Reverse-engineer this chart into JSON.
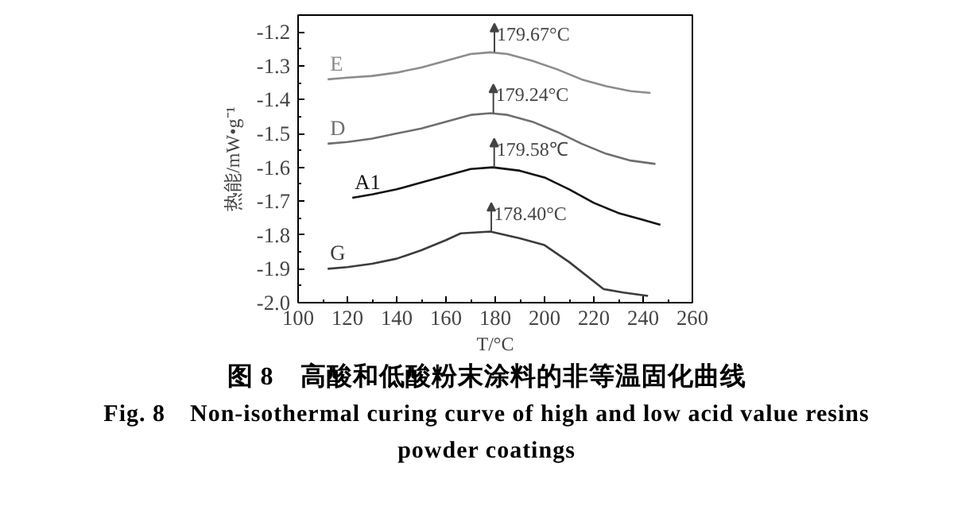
{
  "chart_data": {
    "type": "line",
    "title": "图 8　高酸和低酸粉末涂料的非等温固化曲线",
    "subtitle": "Fig. 8　Non-isothermal curing curve of high and low acid value resins powder coatings",
    "xlabel": "T/°C",
    "ylabel": "热能/mW•g⁻¹",
    "xlim": [
      100,
      260
    ],
    "xticks": [
      100,
      120,
      140,
      160,
      180,
      200,
      220,
      240,
      260
    ],
    "ylim": [
      -2.0,
      -1.15
    ],
    "yticks": [
      {
        "value": -2.0,
        "label": "-2.0"
      },
      -1.9,
      -1.8,
      -1.7,
      -1.6,
      {
        "value": -1.5,
        "label": "-1.5"
      },
      -1.4,
      -1.3,
      -1.2
    ],
    "grid": false,
    "marker": "none",
    "line_style": "solid",
    "series": [
      {
        "name": "E",
        "color": "#8c8c8c",
        "x": [
          112,
          120,
          130,
          140,
          150,
          160,
          170,
          178,
          185,
          195,
          205,
          215,
          225,
          235,
          243
        ],
        "values": [
          -1.34,
          -1.335,
          -1.33,
          -1.32,
          -1.305,
          -1.285,
          -1.265,
          -1.26,
          -1.265,
          -1.285,
          -1.31,
          -1.34,
          -1.36,
          -1.375,
          -1.38
        ]
      },
      {
        "name": "D",
        "color": "#6e6e6e",
        "x": [
          112,
          120,
          130,
          140,
          150,
          160,
          170,
          178,
          185,
          195,
          205,
          215,
          225,
          235,
          245
        ],
        "values": [
          -1.53,
          -1.525,
          -1.515,
          -1.5,
          -1.485,
          -1.465,
          -1.445,
          -1.44,
          -1.445,
          -1.465,
          -1.495,
          -1.53,
          -1.56,
          -1.58,
          -1.59
        ]
      },
      {
        "name": "A1",
        "color": "#111111",
        "x": [
          122,
          130,
          140,
          150,
          160,
          170,
          179,
          190,
          200,
          210,
          220,
          230,
          240,
          247
        ],
        "values": [
          -1.69,
          -1.68,
          -1.665,
          -1.645,
          -1.625,
          -1.605,
          -1.6,
          -1.61,
          -1.63,
          -1.665,
          -1.705,
          -1.735,
          -1.755,
          -1.77
        ]
      },
      {
        "name": "G",
        "color": "#3c3c3c",
        "x": [
          112,
          120,
          130,
          140,
          150,
          160,
          166,
          178,
          190,
          200,
          210,
          224,
          232,
          242
        ],
        "values": [
          -1.9,
          -1.895,
          -1.885,
          -1.87,
          -1.845,
          -1.815,
          -1.795,
          -1.79,
          -1.81,
          -1.83,
          -1.88,
          -1.96,
          -1.97,
          -1.98
        ]
      }
    ],
    "annotations": [
      {
        "text": "179.67°C",
        "x": 179.67,
        "y": -1.26
      },
      {
        "text": "179.24°C",
        "x": 179.24,
        "y": -1.44
      },
      {
        "text": "179.58℃",
        "x": 179.58,
        "y": -1.6
      },
      {
        "text": "178.40°C",
        "x": 178.4,
        "y": -1.79
      }
    ]
  }
}
